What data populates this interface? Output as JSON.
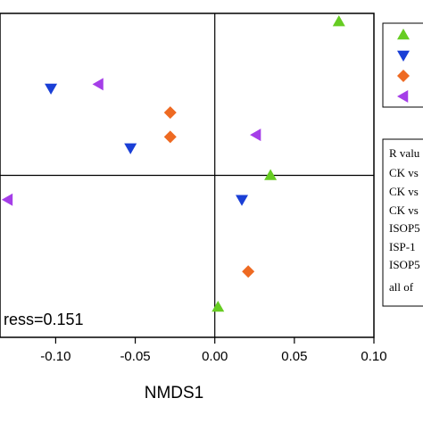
{
  "chart_data": {
    "type": "scatter",
    "title": "",
    "xlabel": "NMDS1",
    "ylabel": "",
    "xlim": [
      -0.135,
      0.1
    ],
    "ylim": [
      -0.16,
      0.16
    ],
    "x_ticks": [
      -0.1,
      -0.05,
      0.0,
      0.05,
      0.1
    ],
    "x_tick_labels": [
      "-0.10",
      "-0.05",
      "0.00",
      "0.05",
      "0.10"
    ],
    "grid": false,
    "reference_lines": {
      "x": 0.0,
      "y": 0.0
    },
    "stress_label": "ress=0.151",
    "legend_placement": "right",
    "series": [
      {
        "marker": "triangle-up",
        "color": "#66cc22",
        "points": [
          [
            0.078,
            0.152
          ],
          [
            0.035,
            0.0
          ],
          [
            0.002,
            -0.13
          ]
        ]
      },
      {
        "marker": "triangle-down",
        "color": "#1a3fd6",
        "points": [
          [
            -0.103,
            0.086
          ],
          [
            -0.053,
            0.027
          ],
          [
            0.017,
            -0.024
          ]
        ]
      },
      {
        "marker": "diamond",
        "color": "#ee6a22",
        "points": [
          [
            -0.028,
            0.062
          ],
          [
            -0.028,
            0.038
          ],
          [
            0.021,
            -0.095
          ]
        ]
      },
      {
        "marker": "triangle-left",
        "color": "#a53ee8",
        "points": [
          [
            -0.073,
            0.09
          ],
          [
            0.026,
            0.04
          ],
          [
            -0.13,
            -0.024
          ]
        ]
      }
    ],
    "stats_box": {
      "lines": [
        "R valu",
        "CK vs",
        "CK vs",
        "CK vs",
        "ISOP5",
        "ISP-1",
        "ISOP5",
        "all of "
      ]
    }
  }
}
